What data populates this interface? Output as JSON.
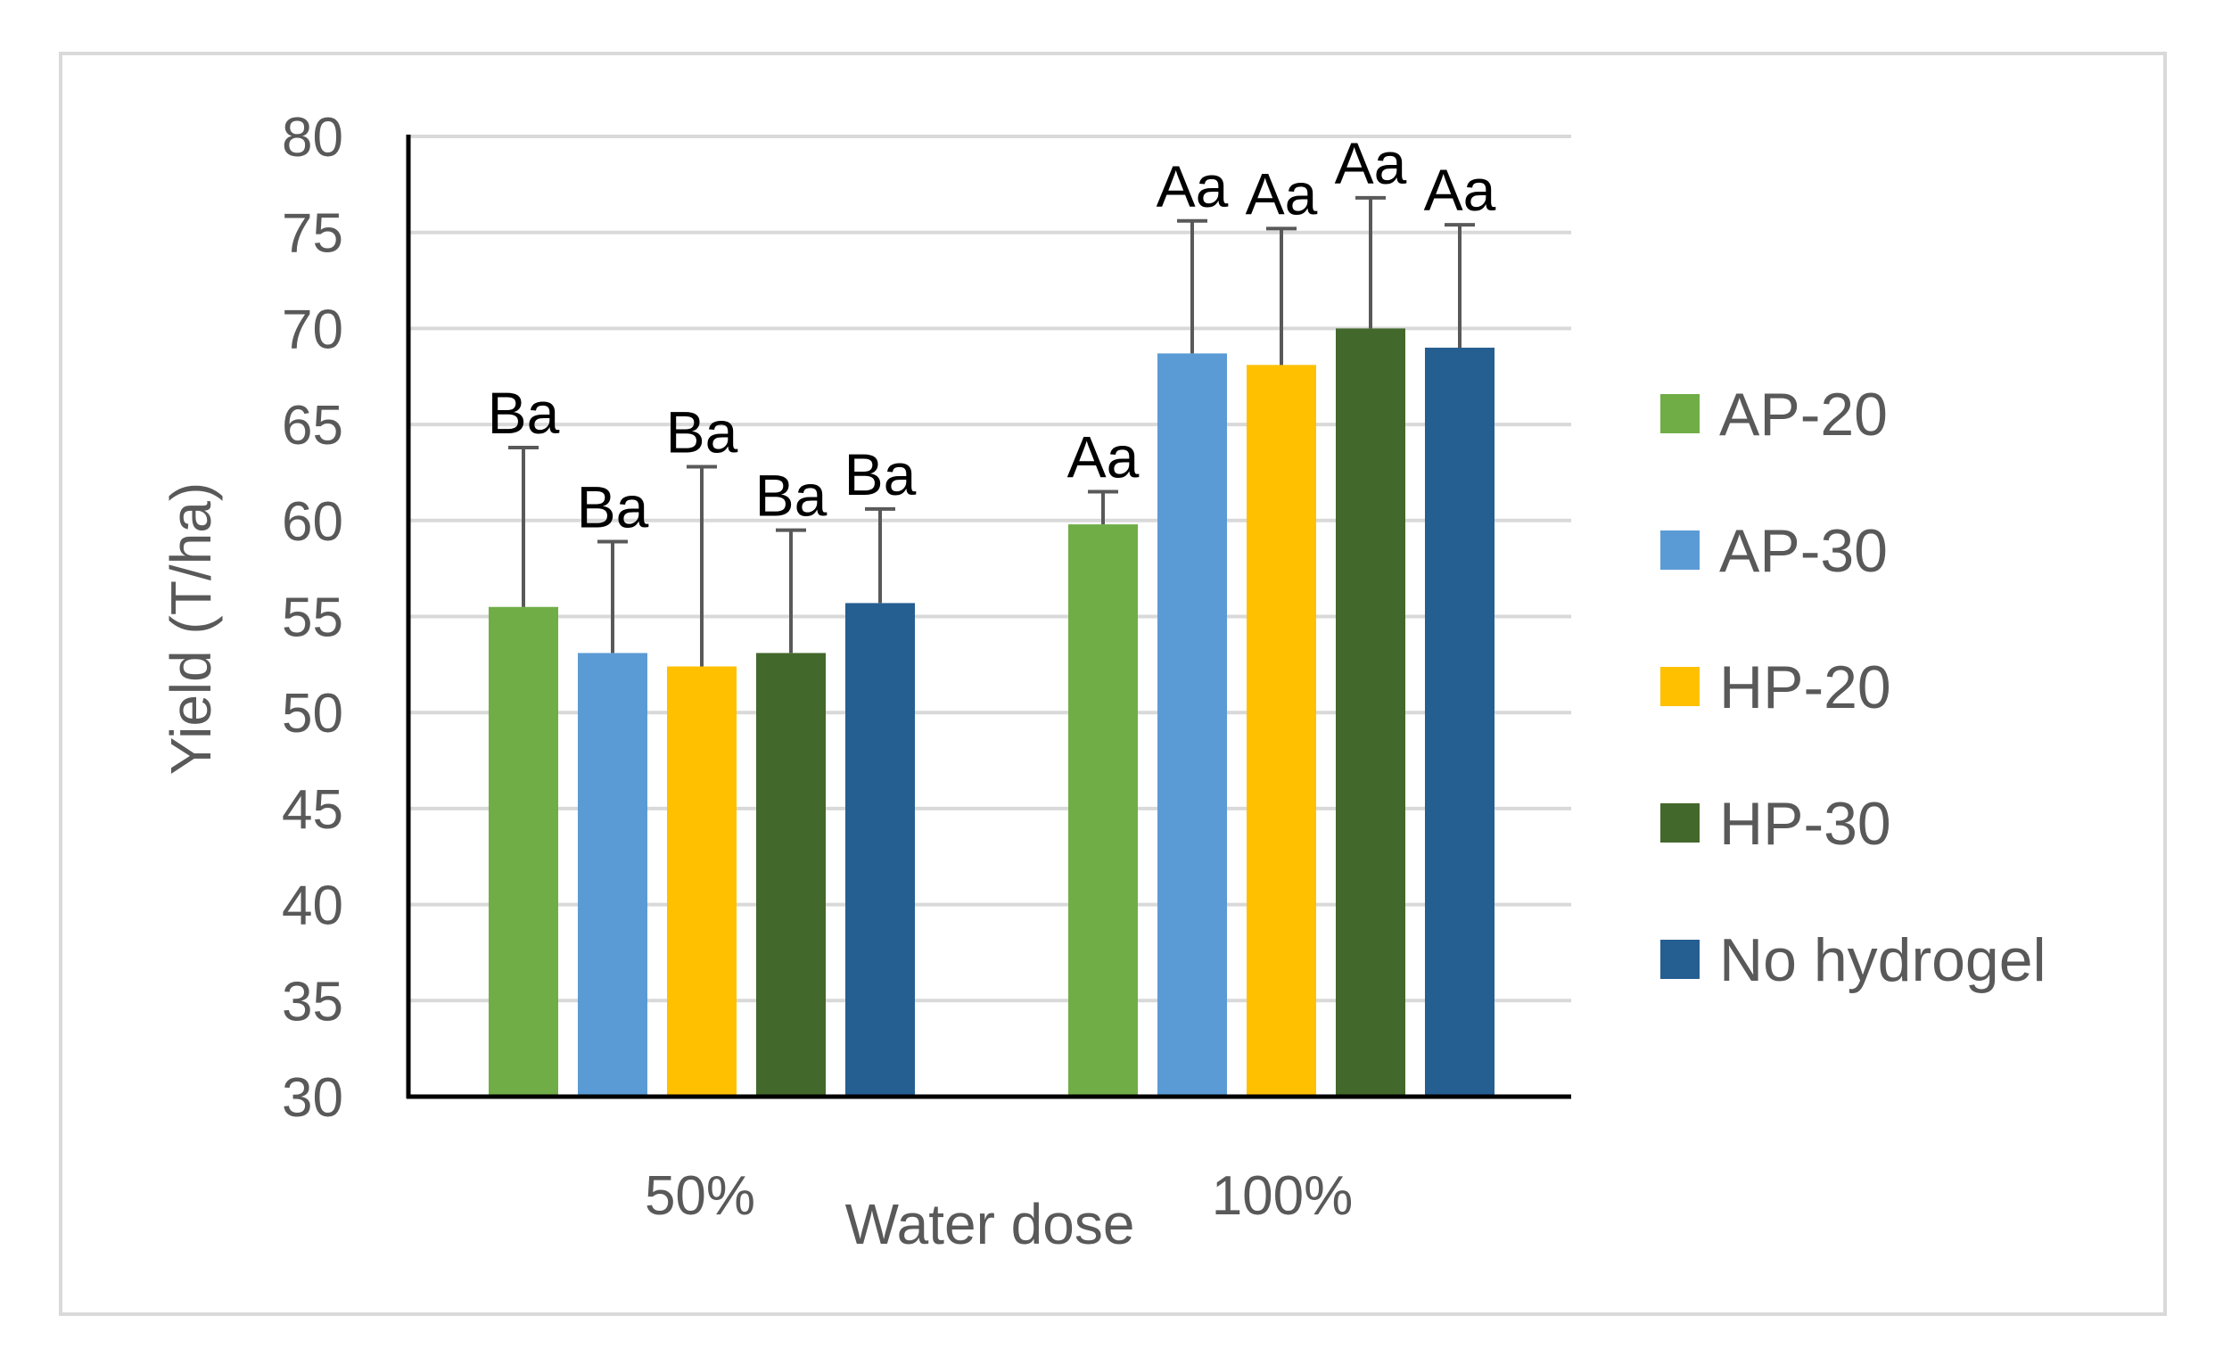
{
  "chart_data": {
    "type": "bar",
    "title": "",
    "xlabel": "Water dose",
    "ylabel": "Yield (T/ha)",
    "ylim": [
      30,
      80
    ],
    "yticks": [
      "30",
      "35",
      "40",
      "45",
      "50",
      "55",
      "60",
      "65",
      "70",
      "75",
      "80"
    ],
    "categories": [
      "50%",
      "100%"
    ],
    "grid": true,
    "legend": "right",
    "series": [
      {
        "name": "AP-20",
        "color": "#70ad47",
        "values": [
          55.5,
          59.8
        ],
        "errors": [
          8.3,
          1.7
        ],
        "labels": [
          "Ba",
          "Aa"
        ]
      },
      {
        "name": "AP-30",
        "color": "#5b9bd5",
        "values": [
          53.1,
          68.7
        ],
        "errors": [
          5.8,
          6.9
        ],
        "labels": [
          "Ba",
          "Aa"
        ]
      },
      {
        "name": "HP-20",
        "color": "#ffc000",
        "values": [
          52.4,
          68.1
        ],
        "errors": [
          10.4,
          7.1
        ],
        "labels": [
          "Ba",
          "Aa"
        ]
      },
      {
        "name": "HP-30",
        "color": "#43682b",
        "values": [
          53.1,
          70.0
        ],
        "errors": [
          6.4,
          6.8
        ],
        "labels": [
          "Ba",
          "Aa"
        ]
      },
      {
        "name": "No hydrogel",
        "color": "#255e91",
        "values": [
          55.7,
          69.0
        ],
        "errors": [
          4.9,
          6.4
        ],
        "labels": [
          "Ba",
          "Aa"
        ]
      }
    ]
  }
}
